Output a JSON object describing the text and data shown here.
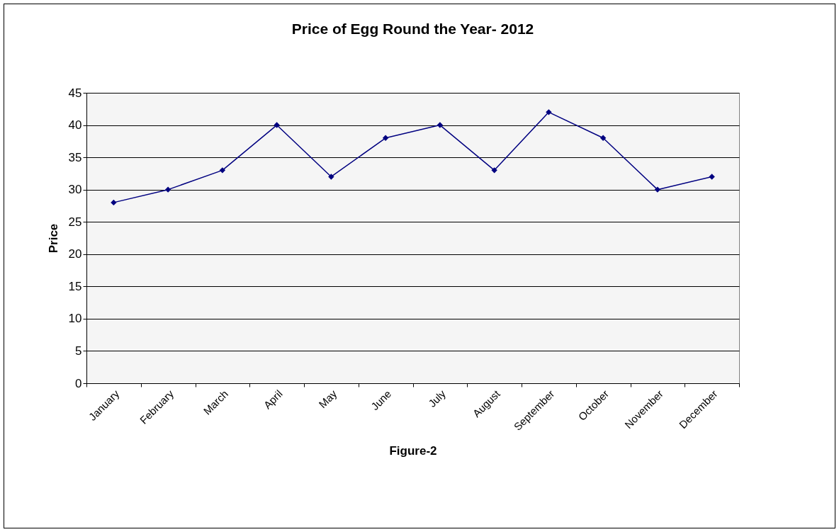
{
  "chart_data": {
    "type": "line",
    "title": "Price of Egg Round the Year- 2012",
    "xlabel": "Figure-2",
    "ylabel": "Price",
    "categories": [
      "January",
      "February",
      "March",
      "April",
      "May",
      "June",
      "July",
      "August",
      "September",
      "October",
      "November",
      "December"
    ],
    "series": [
      {
        "color": "#000080",
        "values": [
          28,
          30,
          33,
          40,
          32,
          38,
          40,
          33,
          42,
          38,
          30,
          32
        ]
      }
    ],
    "ylim": [
      0,
      45
    ],
    "yticks": [
      0,
      5,
      10,
      15,
      20,
      25,
      30,
      35,
      40,
      45
    ],
    "grid": "y",
    "marker": "diamond",
    "line_style": "solid",
    "legend": false
  }
}
